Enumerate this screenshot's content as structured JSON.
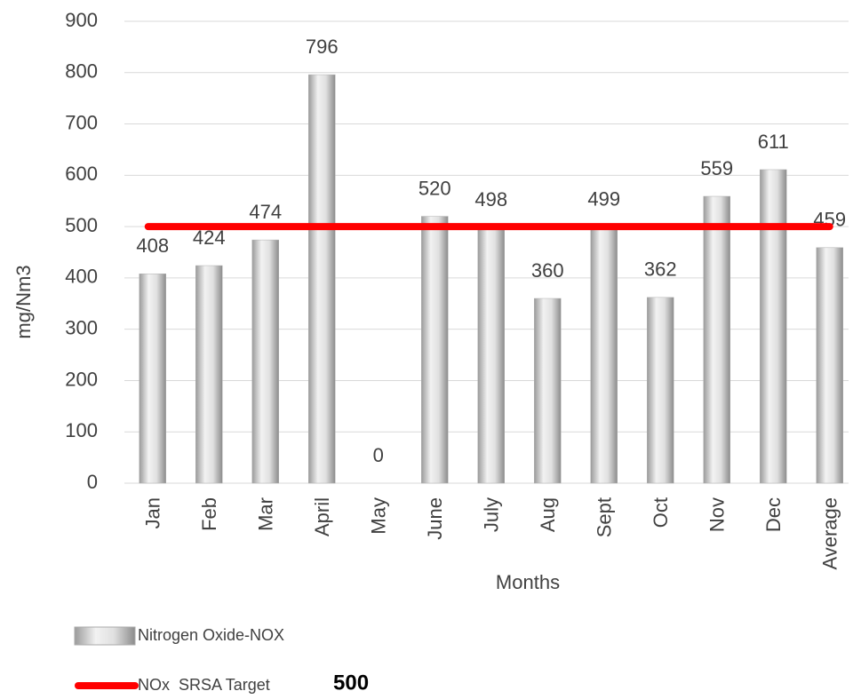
{
  "chart_data": {
    "type": "bar",
    "x_label": "Months",
    "y_label": "mg/Nm3",
    "categories": [
      "Jan",
      "Feb",
      "Mar",
      "April",
      "May",
      "June",
      "July",
      "Aug",
      "Sept",
      "Oct",
      "Nov",
      "Dec",
      "Average"
    ],
    "series": [
      {
        "name": "Nitrogen Oxide-NOX",
        "color": "#c8c8c8",
        "values": [
          408,
          424,
          474,
          796,
          0,
          520,
          498,
          360,
          499,
          362,
          559,
          611,
          459
        ]
      }
    ],
    "target": {
      "name": "NOx  SRSA Target",
      "value": 500,
      "color": "#ff0000"
    },
    "ylim": [
      0,
      900
    ],
    "yticks": [
      0,
      100,
      200,
      300,
      400,
      500,
      600,
      700,
      800,
      900
    ],
    "grid": true
  }
}
